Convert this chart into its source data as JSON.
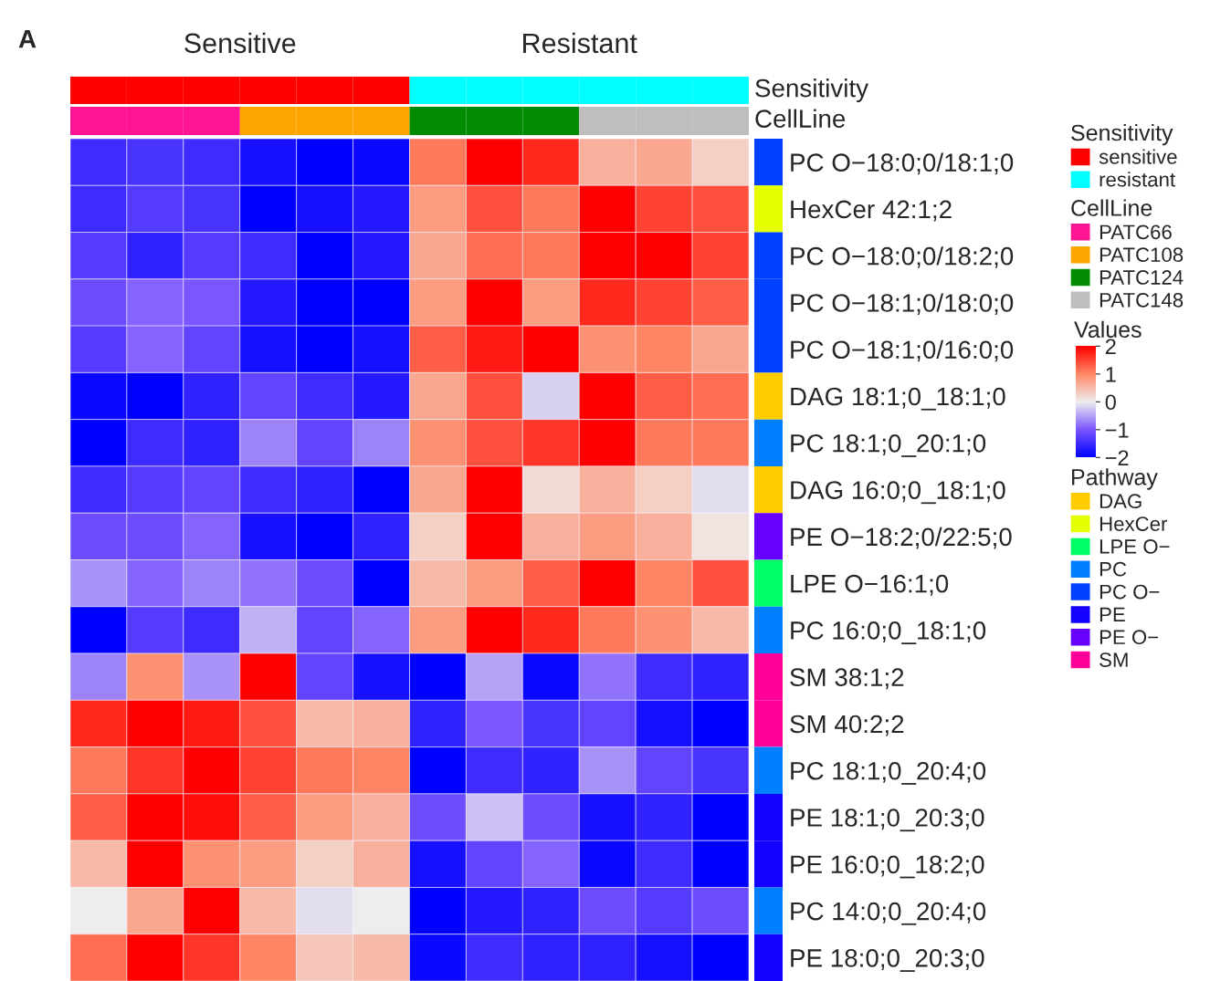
{
  "chart_data": [
    {
      "type": "other",
      "y2label": "Sensitivity",
      "legend_title": "Sensitivity",
      "legend": "right",
      "colors": [
        "#ff0000",
        "#ff0000",
        "#ff0000",
        "#ff0000",
        "#ff0000",
        "#ff0000",
        "#00ffff",
        "#00ffff",
        "#00ffff",
        "#00ffff",
        "#00ffff",
        "#00ffff"
      ],
      "series": [
        {
          "name": "sensitive",
          "color": "#ff0000"
        },
        {
          "name": "resistant",
          "color": "#00ffff"
        }
      ]
    },
    {
      "type": "other",
      "y2label": "CellLine",
      "legend_title": "CellLine",
      "legend": "right",
      "colors": [
        "#ff1493",
        "#ff1493",
        "#ff1493",
        "#ffa500",
        "#ffa500",
        "#ffa500",
        "#008b00",
        "#008b00",
        "#008b00",
        "#bebebe",
        "#bebebe",
        "#bebebe"
      ],
      "series": [
        {
          "name": "PATC66",
          "color": "#ff1493"
        },
        {
          "name": "PATC108",
          "color": "#ffa500"
        },
        {
          "name": "PATC124",
          "color": "#008b00"
        },
        {
          "name": "PATC148",
          "color": "#bebebe"
        }
      ]
    },
    {
      "type": "heatmap",
      "annotations": [
        "A",
        "Sensitive",
        "Resistant"
      ],
      "categories": [
        null,
        null,
        null,
        null,
        null,
        null,
        null,
        null,
        null,
        null,
        null,
        null
      ],
      "y_categories": [
        "PC O−18:0;0/18:1;0",
        "HexCer 42:1;2",
        "PC O−18:0;0/18:2;0",
        "PC O−18:1;0/18:0;0",
        "PC O−18:1;0/16:0;0",
        "DAG 18:1;0_18:1;0",
        "PC 18:1;0_20:1;0",
        "DAG 16:0;0_18:1;0",
        "PE O−18:2;0/22:5;0",
        "LPE O−16:1;0",
        "PC 16:0;0_18:1;0",
        "SM 38:1;2",
        "SM 40:2;2",
        "PC 18:1;0_20:4;0",
        "PE 18:1;0_20:3;0",
        "PE 16:0;0_18:2;0",
        "PC 14:0;0_20:4;0",
        "PE 18:0;0_20:3;0"
      ],
      "cells": [
        [
          -1.5,
          -1.4,
          -1.5,
          -1.8,
          -2,
          -1.9,
          1.1,
          2,
          1.7,
          0.6,
          0.7,
          0.3
        ],
        [
          -1.5,
          -1.3,
          -1.4,
          -2,
          -1.8,
          -1.7,
          0.8,
          1.4,
          1.1,
          2,
          1.5,
          1.4
        ],
        [
          -1.3,
          -1.6,
          -1.3,
          -1.5,
          -2,
          -1.7,
          0.7,
          1.2,
          1.1,
          2,
          2,
          1.5
        ],
        [
          -1.1,
          -0.9,
          -1.0,
          -1.7,
          -2,
          -2,
          0.8,
          2,
          0.8,
          1.7,
          1.5,
          1.3
        ],
        [
          -1.3,
          -0.9,
          -1.2,
          -1.8,
          -2,
          -1.8,
          1.3,
          1.8,
          2,
          0.9,
          1.0,
          0.7
        ],
        [
          -1.9,
          -2,
          -1.6,
          -1.2,
          -1.5,
          -1.7,
          0.7,
          1.4,
          -0.2,
          2,
          1.3,
          1.2
        ],
        [
          -2,
          -1.5,
          -1.6,
          -0.7,
          -1.2,
          -0.7,
          0.9,
          1.4,
          1.6,
          2,
          1.1,
          1.1
        ],
        [
          -1.5,
          -1.3,
          -1.2,
          -1.5,
          -1.6,
          -2,
          0.7,
          2,
          0.2,
          0.6,
          0.3,
          -0.1
        ],
        [
          -1.1,
          -1.1,
          -0.9,
          -1.8,
          -2,
          -1.6,
          0.3,
          2,
          0.6,
          0.8,
          0.6,
          0.1
        ],
        [
          -0.6,
          -0.9,
          -0.7,
          -0.8,
          -1.1,
          -2,
          0.5,
          0.8,
          1.3,
          2,
          1.0,
          1.4
        ],
        [
          -2,
          -1.3,
          -1.5,
          -0.4,
          -1.2,
          -0.9,
          0.8,
          2,
          1.7,
          1.1,
          0.9,
          0.5
        ],
        [
          -0.7,
          0.9,
          -0.6,
          2,
          -1.2,
          -1.8,
          -2,
          -0.5,
          -1.9,
          -0.8,
          -1.5,
          -1.6
        ],
        [
          1.7,
          2,
          1.8,
          1.4,
          0.5,
          0.6,
          -1.6,
          -1.0,
          -1.4,
          -1.2,
          -1.8,
          -2
        ],
        [
          1.1,
          1.6,
          2,
          1.5,
          1.1,
          1.0,
          -2,
          -1.5,
          -1.6,
          -0.6,
          -1.2,
          -1.4
        ],
        [
          1.3,
          2,
          1.9,
          1.3,
          0.8,
          0.6,
          -1.1,
          -0.3,
          -1.1,
          -1.8,
          -1.6,
          -2
        ],
        [
          0.5,
          2,
          0.9,
          0.8,
          0.3,
          0.6,
          -1.8,
          -1.2,
          -0.9,
          -1.9,
          -1.5,
          -2
        ],
        [
          0,
          0.7,
          2,
          0.5,
          -0.1,
          0,
          -2,
          -1.7,
          -1.6,
          -1.1,
          -1.3,
          -1.1
        ],
        [
          1.2,
          2,
          1.6,
          1.0,
          0.4,
          0.5,
          -1.9,
          -1.5,
          -1.6,
          -1.6,
          -1.8,
          -2
        ]
      ],
      "clim": [
        -2,
        2
      ],
      "cticks": [
        {
          "value": -2,
          "label": "−2"
        },
        {
          "value": -1,
          "label": "−1"
        },
        0,
        1,
        2
      ],
      "clabel": "Values"
    },
    {
      "type": "other",
      "legend_title": "Pathway",
      "legend": "right",
      "colors": [
        "#0040ff",
        "#e6ff00",
        "#0040ff",
        "#0040ff",
        "#0040ff",
        "#ffcc00",
        "#0080ff",
        "#ffcc00",
        "#6600ff",
        "#00ff66",
        "#0080ff",
        "#ff0099",
        "#ff0099",
        "#0080ff",
        "#1400ff",
        "#1400ff",
        "#0080ff",
        "#1400ff"
      ],
      "series": [
        {
          "name": "DAG",
          "color": "#ffcc00"
        },
        {
          "name": "HexCer",
          "color": "#e6ff00"
        },
        {
          "name": "LPE O−",
          "color": "#00ff66"
        },
        {
          "name": "PC",
          "color": "#0080ff"
        },
        {
          "name": "PC O−",
          "color": "#0040ff"
        },
        {
          "name": "PE",
          "color": "#1400ff"
        },
        {
          "name": "PE O−",
          "color": "#6600ff"
        },
        {
          "name": "SM",
          "color": "#ff0099"
        }
      ]
    }
  ]
}
